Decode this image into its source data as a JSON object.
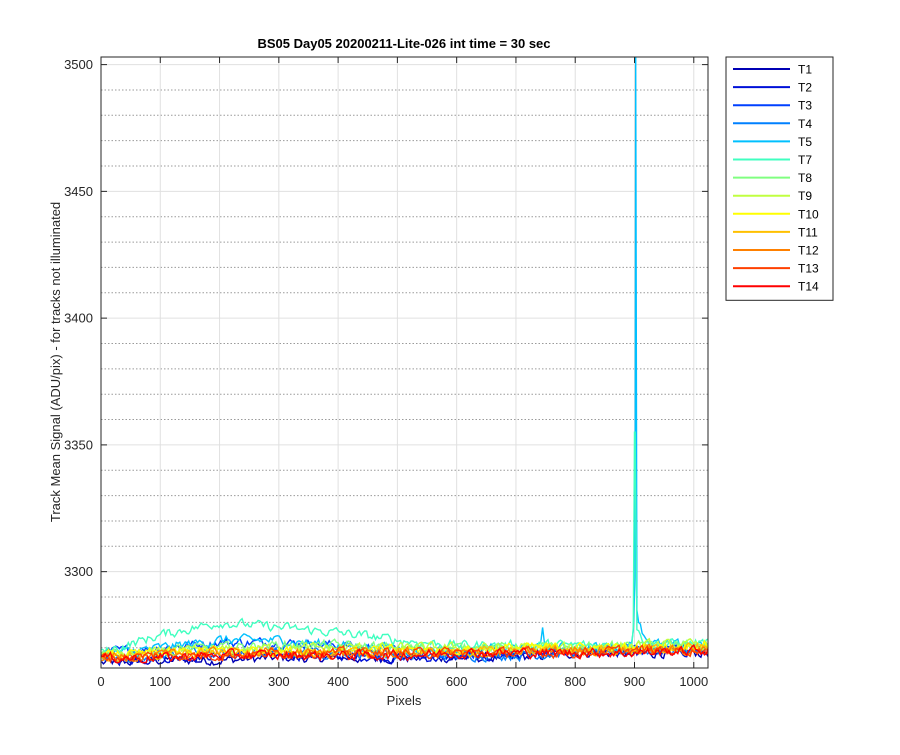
{
  "chart_data": {
    "type": "line",
    "title": "BS05 Day05 20200211-Lite-026 int time = 30 sec",
    "xlabel": "Pixels",
    "ylabel": "Track Mean Signal (ADU/pix) - for tracks not illuminated",
    "xlim": [
      0,
      1024
    ],
    "ylim": [
      3262,
      3503
    ],
    "xticks": [
      0,
      100,
      200,
      300,
      400,
      500,
      600,
      700,
      800,
      900,
      1000
    ],
    "yticks": [
      3300,
      3350,
      3400,
      3450,
      3500
    ],
    "grid": "on (major solid, minor dotted on y)",
    "legend_position": "outside-right-top",
    "series": [
      {
        "name": "T1",
        "color": "#0000B4",
        "baseline": [
          [
            0,
            3264
          ],
          [
            100,
            3265
          ],
          [
            200,
            3265
          ],
          [
            300,
            3266
          ],
          [
            400,
            3266
          ],
          [
            500,
            3266
          ],
          [
            600,
            3266
          ],
          [
            700,
            3266
          ],
          [
            800,
            3268
          ],
          [
            900,
            3268
          ],
          [
            1024,
            3268
          ]
        ],
        "spike": null
      },
      {
        "name": "T2",
        "color": "#0010D8",
        "baseline": [
          [
            0,
            3265
          ],
          [
            100,
            3266
          ],
          [
            200,
            3267
          ],
          [
            300,
            3267
          ],
          [
            400,
            3267
          ],
          [
            500,
            3266
          ],
          [
            600,
            3266
          ],
          [
            700,
            3267
          ],
          [
            800,
            3268
          ],
          [
            900,
            3268
          ],
          [
            1024,
            3269
          ]
        ],
        "spike": null
      },
      {
        "name": "T3",
        "color": "#0040FF",
        "baseline": [
          [
            0,
            3268
          ],
          [
            100,
            3270
          ],
          [
            200,
            3272
          ],
          [
            300,
            3272
          ],
          [
            400,
            3271
          ],
          [
            500,
            3269
          ],
          [
            600,
            3268
          ],
          [
            700,
            3268
          ],
          [
            800,
            3269
          ],
          [
            900,
            3270
          ],
          [
            1024,
            3270
          ]
        ],
        "spike": null
      },
      {
        "name": "T4",
        "color": "#0080FF",
        "baseline": [
          [
            0,
            3266
          ],
          [
            100,
            3267
          ],
          [
            200,
            3268
          ],
          [
            300,
            3268
          ],
          [
            400,
            3268
          ],
          [
            500,
            3267
          ],
          [
            600,
            3267
          ],
          [
            700,
            3267
          ],
          [
            800,
            3268
          ],
          [
            900,
            3269
          ],
          [
            1024,
            3269
          ]
        ],
        "spike": null
      },
      {
        "name": "T5",
        "color": "#00C0FF",
        "baseline": [
          [
            0,
            3267
          ],
          [
            100,
            3270
          ],
          [
            200,
            3273
          ],
          [
            300,
            3273
          ],
          [
            400,
            3271
          ],
          [
            500,
            3270
          ],
          [
            600,
            3269
          ],
          [
            700,
            3270
          ],
          [
            800,
            3270
          ],
          [
            900,
            3271
          ],
          [
            1024,
            3271
          ]
        ],
        "spike": {
          "x": 902,
          "peak": 3503,
          "extra": [
            [
              745,
              3278
            ],
            [
              750,
              3272
            ]
          ]
        }
      },
      {
        "name": "T7",
        "color": "#40FFC0",
        "baseline": [
          [
            0,
            3268
          ],
          [
            100,
            3275
          ],
          [
            200,
            3280
          ],
          [
            300,
            3278
          ],
          [
            400,
            3276
          ],
          [
            500,
            3273
          ],
          [
            600,
            3271
          ],
          [
            700,
            3271
          ],
          [
            800,
            3271
          ],
          [
            900,
            3271
          ],
          [
            1024,
            3272
          ]
        ],
        "spike": {
          "x": 900,
          "peak": 3355,
          "extra": []
        }
      },
      {
        "name": "T8",
        "color": "#80FF80",
        "baseline": [
          [
            0,
            3267
          ],
          [
            100,
            3269
          ],
          [
            200,
            3270
          ],
          [
            300,
            3271
          ],
          [
            400,
            3271
          ],
          [
            500,
            3270
          ],
          [
            600,
            3270
          ],
          [
            700,
            3270
          ],
          [
            800,
            3270
          ],
          [
            900,
            3271
          ],
          [
            1024,
            3271
          ]
        ],
        "spike": null
      },
      {
        "name": "T9",
        "color": "#C0FF40",
        "baseline": [
          [
            0,
            3267
          ],
          [
            100,
            3268
          ],
          [
            200,
            3269
          ],
          [
            300,
            3270
          ],
          [
            400,
            3270
          ],
          [
            500,
            3270
          ],
          [
            600,
            3270
          ],
          [
            700,
            3270
          ],
          [
            800,
            3270
          ],
          [
            900,
            3271
          ],
          [
            1024,
            3271
          ]
        ],
        "spike": null
      },
      {
        "name": "T10",
        "color": "#FFFF00",
        "baseline": [
          [
            0,
            3267
          ],
          [
            100,
            3268
          ],
          [
            200,
            3269
          ],
          [
            300,
            3269
          ],
          [
            400,
            3269
          ],
          [
            500,
            3269
          ],
          [
            600,
            3269
          ],
          [
            700,
            3270
          ],
          [
            800,
            3270
          ],
          [
            900,
            3270
          ],
          [
            1024,
            3271
          ]
        ],
        "spike": null
      },
      {
        "name": "T11",
        "color": "#FFC000",
        "baseline": [
          [
            0,
            3266
          ],
          [
            100,
            3267
          ],
          [
            200,
            3268
          ],
          [
            300,
            3268
          ],
          [
            400,
            3268
          ],
          [
            500,
            3268
          ],
          [
            600,
            3268
          ],
          [
            700,
            3269
          ],
          [
            800,
            3269
          ],
          [
            900,
            3269
          ],
          [
            1024,
            3270
          ]
        ],
        "spike": null
      },
      {
        "name": "T12",
        "color": "#FF8000",
        "baseline": [
          [
            0,
            3266
          ],
          [
            100,
            3267
          ],
          [
            200,
            3268
          ],
          [
            300,
            3268
          ],
          [
            400,
            3268
          ],
          [
            500,
            3268
          ],
          [
            600,
            3268
          ],
          [
            700,
            3268
          ],
          [
            800,
            3269
          ],
          [
            900,
            3269
          ],
          [
            1024,
            3269
          ]
        ],
        "spike": null
      },
      {
        "name": "T13",
        "color": "#FF4000",
        "baseline": [
          [
            0,
            3266
          ],
          [
            100,
            3267
          ],
          [
            200,
            3267
          ],
          [
            300,
            3268
          ],
          [
            400,
            3268
          ],
          [
            500,
            3268
          ],
          [
            600,
            3268
          ],
          [
            700,
            3268
          ],
          [
            800,
            3268
          ],
          [
            900,
            3269
          ],
          [
            1024,
            3269
          ]
        ],
        "spike": null
      },
      {
        "name": "T14",
        "color": "#FF0000",
        "baseline": [
          [
            0,
            3266
          ],
          [
            100,
            3266
          ],
          [
            200,
            3267
          ],
          [
            300,
            3267
          ],
          [
            400,
            3267
          ],
          [
            500,
            3267
          ],
          [
            600,
            3268
          ],
          [
            700,
            3268
          ],
          [
            800,
            3268
          ],
          [
            900,
            3268
          ],
          [
            1024,
            3269
          ]
        ],
        "spike": null
      }
    ]
  }
}
